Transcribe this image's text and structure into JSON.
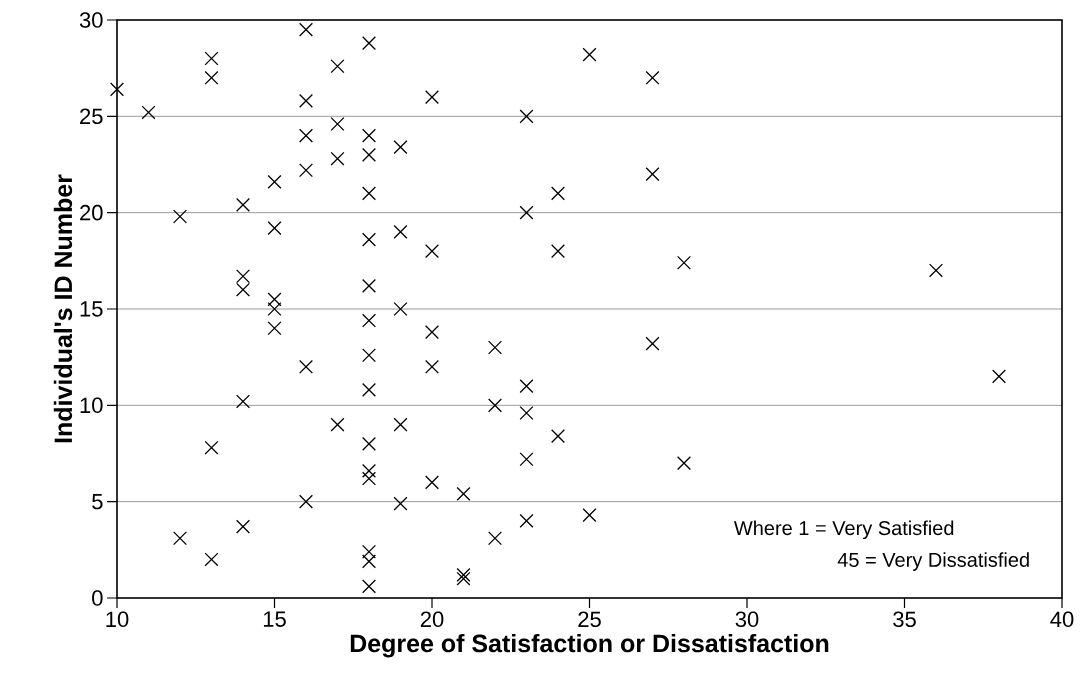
{
  "chart_data": {
    "type": "scatter",
    "xlabel": "Degree of Satisfaction or Dissatisfaction",
    "ylabel": "Individual's ID Number",
    "x": [
      10,
      11,
      13,
      13,
      16,
      18,
      17,
      25,
      27,
      16,
      20,
      23,
      17,
      16,
      18,
      18,
      17,
      19,
      16,
      15,
      18,
      27,
      24,
      14,
      12,
      23,
      15,
      18,
      19,
      20,
      24,
      28,
      36,
      14,
      14,
      18,
      15,
      15,
      19,
      15,
      18,
      20,
      27,
      22,
      18,
      16,
      20,
      38,
      23,
      18,
      14,
      22,
      23,
      17,
      19,
      24,
      13,
      18,
      23,
      28,
      18,
      18,
      20,
      21,
      16,
      19,
      25,
      23,
      14,
      12,
      22,
      13,
      18,
      18,
      21,
      21,
      18
    ],
    "values": [
      26.4,
      25.2,
      28,
      27,
      29.5,
      28.8,
      27.6,
      28.2,
      27,
      25.8,
      26,
      25,
      24.6,
      24,
      24,
      23,
      22.8,
      23.4,
      22.2,
      21.6,
      21,
      22,
      21,
      20.4,
      19.8,
      20,
      19.2,
      18.6,
      19,
      18,
      18,
      17.4,
      17,
      16.7,
      16,
      16.2,
      15.5,
      15,
      15,
      14,
      14.4,
      13.8,
      13.2,
      13,
      12.6,
      12,
      12,
      11.5,
      11,
      10.8,
      10.2,
      10,
      9.6,
      9,
      9,
      8.4,
      7.8,
      8,
      7.2,
      7,
      6.6,
      6.2,
      6,
      5.4,
      5,
      4.9,
      4.3,
      4,
      3.7,
      3.1,
      3.1,
      2,
      2.4,
      1.9,
      1.2,
      1,
      0.6
    ],
    "color": "#000000",
    "marker": "cross",
    "grid": "y",
    "xlim": [
      10,
      40
    ],
    "xticks": [
      10,
      15,
      20,
      25,
      30,
      35,
      40
    ],
    "ylim": [
      0,
      30
    ],
    "yticks": [
      0,
      5,
      10,
      15,
      20,
      25,
      30
    ],
    "annotations": [
      "Where 1 = Very Satisfied",
      "45 = Very Dissatisfied"
    ]
  }
}
